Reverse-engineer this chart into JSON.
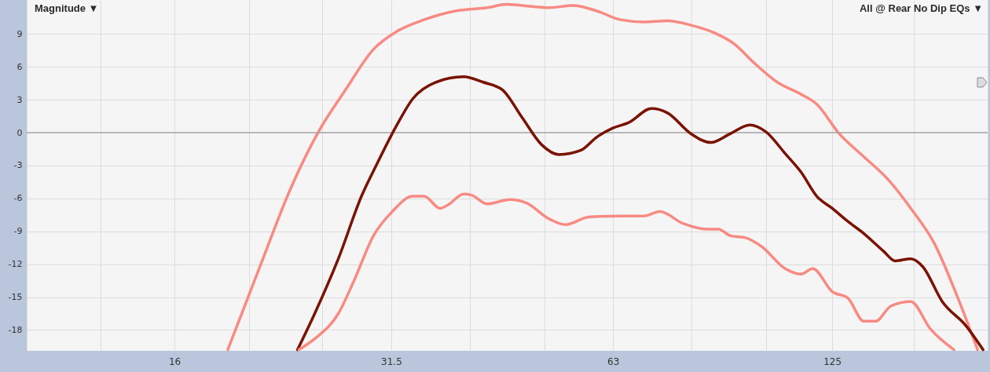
{
  "chart_data": {
    "type": "line",
    "title": "Magnitude ▼",
    "annotations": [
      "All @ Rear No Dip EQs ▼"
    ],
    "xlim": [
      10.08,
      203.2
    ],
    "ylim": [
      -19.9,
      12.1
    ],
    "xticks": [
      {
        "value": 10.08,
        "label": null
      },
      {
        "value": 12.7,
        "label": null
      },
      {
        "value": 16,
        "label": "16"
      },
      {
        "value": 20.2,
        "label": null
      },
      {
        "value": 25.4,
        "label": null
      },
      31.5,
      {
        "value": 40.3,
        "label": null
      },
      {
        "value": 50.8,
        "label": null
      },
      63,
      {
        "value": 80.6,
        "label": null
      },
      {
        "value": 101.6,
        "label": null
      },
      125,
      {
        "value": 161.3,
        "label": null
      },
      {
        "value": 203.2,
        "label": null
      }
    ],
    "yticks": [
      -18,
      -15,
      -12,
      -9,
      -6,
      -3,
      0,
      3,
      6,
      9
    ],
    "log": "x",
    "grid": true,
    "line_style": "solid",
    "marker": "none",
    "ref_lines": [
      {
        "axis": "y",
        "value": 0,
        "color": "#a6a6a6"
      }
    ],
    "series": [
      {
        "color": "#f88a82",
        "x": [
          18.9,
          20.9,
          23.0,
          25.1,
          27.3,
          29.8,
          32.0,
          34.9,
          38.5,
          42.5,
          45.2,
          49.2,
          51.7,
          55.6,
          59.9,
          64.5,
          69.4,
          74.7,
          80.4,
          86.5,
          92.0,
          97.8,
          105.3,
          113.4,
          119.1,
          127.8,
          138.0,
          148.5,
          159.8,
          172.0,
          185.2,
          196.9
        ],
        "values": [
          -19.8,
          -12.2,
          -5.1,
          0.1,
          3.9,
          7.6,
          9.2,
          10.3,
          11.1,
          11.4,
          11.7,
          11.5,
          11.4,
          11.6,
          11.1,
          10.3,
          10.1,
          10.2,
          9.8,
          9.1,
          8.1,
          6.4,
          4.6,
          3.5,
          2.6,
          -0.1,
          -2.2,
          -4.2,
          -6.9,
          -10.1,
          -15.1,
          -19.8
        ]
      },
      {
        "color": "#7a1200",
        "x": [
          23.5,
          24.8,
          26.7,
          28.7,
          30.1,
          32.0,
          33.7,
          36.2,
          39.5,
          42.0,
          44.6,
          47.4,
          50.4,
          53.2,
          57.0,
          59.9,
          62.9,
          66.1,
          71.1,
          74.7,
          80.4,
          85.5,
          90.9,
          96.6,
          101.5,
          107.9,
          113.4,
          119.1,
          125.0,
          131.3,
          138.0,
          146.7,
          152.2,
          159.8,
          165.8,
          176.3,
          189.8,
          200.3
        ],
        "values": [
          -19.8,
          -16.5,
          -11.5,
          -5.8,
          -2.9,
          0.6,
          3.1,
          4.6,
          5.1,
          4.6,
          3.9,
          1.4,
          -1.1,
          -2.0,
          -1.6,
          -0.4,
          0.4,
          0.9,
          2.2,
          1.8,
          -0.1,
          -0.9,
          -0.1,
          0.7,
          0.1,
          -1.9,
          -3.6,
          -5.8,
          -6.9,
          -8.1,
          -9.2,
          -10.8,
          -11.7,
          -11.5,
          -12.2,
          -15.4,
          -17.6,
          -19.8
        ]
      },
      {
        "color": "#f88a82",
        "x": [
          23.6,
          24.8,
          26.7,
          28.0,
          29.8,
          31.6,
          33.7,
          34.9,
          36.7,
          37.6,
          39.5,
          40.5,
          42.5,
          45.7,
          48.0,
          51.7,
          54.3,
          58.4,
          64.5,
          69.4,
          72.9,
          78.5,
          84.4,
          87.6,
          90.9,
          95.5,
          100.3,
          107.9,
          113.4,
          117.6,
          125.0,
          131.3,
          138.0,
          143.1,
          150.3,
          159.8,
          169.9,
          182.9
        ],
        "values": [
          -19.8,
          -18.8,
          -16.5,
          -13.6,
          -9.4,
          -7.2,
          -5.8,
          -5.8,
          -6.9,
          -6.6,
          -5.6,
          -5.7,
          -6.5,
          -6.1,
          -6.4,
          -7.9,
          -8.4,
          -7.7,
          -7.6,
          -7.6,
          -7.2,
          -8.3,
          -8.8,
          -8.8,
          -9.4,
          -9.6,
          -10.4,
          -12.4,
          -12.9,
          -12.4,
          -14.5,
          -15.1,
          -17.2,
          -17.2,
          -15.8,
          -15.4,
          -17.9,
          -19.8
        ]
      }
    ]
  }
}
